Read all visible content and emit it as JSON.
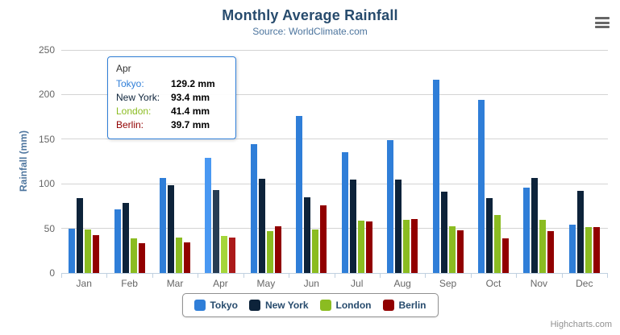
{
  "credits": "Highcharts.com",
  "chart_data": {
    "type": "bar",
    "title": "Monthly Average Rainfall",
    "subtitle": "Source: WorldClimate.com",
    "categories": [
      "Jan",
      "Feb",
      "Mar",
      "Apr",
      "May",
      "Jun",
      "Jul",
      "Aug",
      "Sep",
      "Oct",
      "Nov",
      "Dec"
    ],
    "series": [
      {
        "name": "Tokyo",
        "color": "#2f7ed8",
        "hover_color": "#4998f2",
        "values": [
          49.9,
          71.5,
          106.4,
          129.2,
          144.0,
          176.0,
          135.6,
          148.5,
          216.4,
          194.1,
          95.6,
          54.4
        ]
      },
      {
        "name": "New York",
        "color": "#0d233a",
        "hover_color": "#273d54",
        "values": [
          83.6,
          78.8,
          98.5,
          93.4,
          106.0,
          84.5,
          105.0,
          104.3,
          91.2,
          83.5,
          106.6,
          92.3
        ]
      },
      {
        "name": "London",
        "color": "#8bbc21",
        "hover_color": "#a5d63b",
        "values": [
          48.9,
          38.8,
          39.3,
          41.4,
          47.0,
          48.3,
          59.0,
          59.6,
          52.4,
          65.2,
          59.3,
          51.2
        ]
      },
      {
        "name": "Berlin",
        "color": "#910000",
        "hover_color": "#ab1a1a",
        "values": [
          42.4,
          33.2,
          34.5,
          39.7,
          52.6,
          75.5,
          57.4,
          60.4,
          47.6,
          39.1,
          46.8,
          51.1
        ]
      }
    ],
    "xlabel": "",
    "ylabel": "Rainfall (mm)",
    "ylim": [
      0,
      250
    ],
    "ytick_step": 50,
    "grid": true,
    "legend_position": "bottom",
    "hovered_category_index": 3
  },
  "tooltip": {
    "header": "Apr",
    "border_color": "#2f7ed8",
    "rows": [
      {
        "label": "Tokyo:",
        "value": "129.2 mm",
        "color": "#2f7ed8"
      },
      {
        "label": "New York:",
        "value": "93.4 mm",
        "color": "#0d233a"
      },
      {
        "label": "London:",
        "value": "41.4 mm",
        "color": "#8bbc21"
      },
      {
        "label": "Berlin:",
        "value": "39.7 mm",
        "color": "#910000"
      }
    ]
  }
}
